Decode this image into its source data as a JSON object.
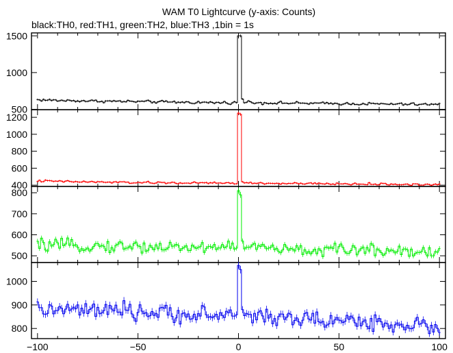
{
  "chart_data": {
    "type": "line",
    "title": "WAM T0 Lightcurve (y-axis: Counts)",
    "subtitle": "black:TH0, red:TH1, green:TH2, blue:TH3 ,1bin = 1s",
    "xlabel": "",
    "ylabel": "",
    "xlim": [
      -103,
      103
    ],
    "x_ticks": [
      -100,
      -50,
      0,
      50,
      100
    ],
    "x_tick_labels": [
      "−100",
      "−50",
      "0",
      "50",
      "100"
    ],
    "grid": false,
    "panels": [
      {
        "name": "TH0",
        "color": "#000000",
        "ylim": [
          495,
          1540
        ],
        "y_ticks": [
          500,
          1000,
          1500
        ],
        "y_tick_labels": [
          "500",
          "1000",
          "1500"
        ],
        "baseline_profile": [
          [
            -100,
            630
          ],
          [
            -90,
            620
          ],
          [
            -70,
            612
          ],
          [
            -50,
            605
          ],
          [
            -30,
            597
          ],
          [
            -10,
            590
          ],
          [
            0,
            592
          ],
          [
            30,
            583
          ],
          [
            60,
            575
          ],
          [
            100,
            565
          ]
        ],
        "noise": 18,
        "peak": {
          "x": [
            0,
            1
          ],
          "y": [
            1500,
            1500
          ]
        },
        "post_peak": {
          "x": [
            2,
            5
          ],
          "y": [
            640,
            615
          ]
        }
      },
      {
        "name": "TH1",
        "color": "#ff0000",
        "ylim": [
          385,
          1290
        ],
        "y_ticks": [
          400,
          600,
          800,
          1000,
          1200
        ],
        "y_tick_labels": [
          "400",
          "600",
          "800",
          "1000",
          "1200"
        ],
        "baseline_profile": [
          [
            -100,
            450
          ],
          [
            -80,
            440
          ],
          [
            -50,
            430
          ],
          [
            -20,
            425
          ],
          [
            0,
            425
          ],
          [
            30,
            418
          ],
          [
            70,
            412
          ],
          [
            100,
            405
          ]
        ],
        "noise": 12,
        "peak": {
          "x": [
            0,
            1
          ],
          "y": [
            1250,
            1235
          ]
        },
        "post_peak": {
          "x": [
            2,
            5
          ],
          "y": [
            440,
            425
          ]
        }
      },
      {
        "name": "TH2",
        "color": "#00ee00",
        "ylim": [
          468,
          830
        ],
        "y_ticks": [
          500,
          600,
          700,
          800
        ],
        "y_tick_labels": [
          "500",
          "600",
          "700",
          "800"
        ],
        "baseline_profile": [
          [
            -100,
            550
          ],
          [
            -60,
            545
          ],
          [
            -20,
            540
          ],
          [
            0,
            548
          ],
          [
            30,
            525
          ],
          [
            60,
            530
          ],
          [
            100,
            520
          ]
        ],
        "noise": 28,
        "peak": {
          "x": [
            0,
            1
          ],
          "y": [
            810,
            790
          ]
        },
        "post_peak": {
          "x": [
            2,
            5
          ],
          "y": [
            570,
            540
          ]
        }
      },
      {
        "name": "TH3",
        "color": "#0000ee",
        "ylim": [
          757,
          1080
        ],
        "y_ticks": [
          800,
          900,
          1000
        ],
        "y_tick_labels": [
          "800",
          "900",
          "1000"
        ],
        "baseline_profile": [
          [
            -100,
            880
          ],
          [
            -70,
            875
          ],
          [
            -40,
            865
          ],
          [
            -10,
            855
          ],
          [
            0,
            860
          ],
          [
            30,
            840
          ],
          [
            60,
            830
          ],
          [
            100,
            805
          ]
        ],
        "noise": 35,
        "peak": {
          "x": [
            0,
            1
          ],
          "y": [
            1068,
            1050
          ]
        },
        "post_peak": {
          "x": [
            2,
            5
          ],
          "y": [
            880,
            860
          ]
        }
      }
    ]
  }
}
